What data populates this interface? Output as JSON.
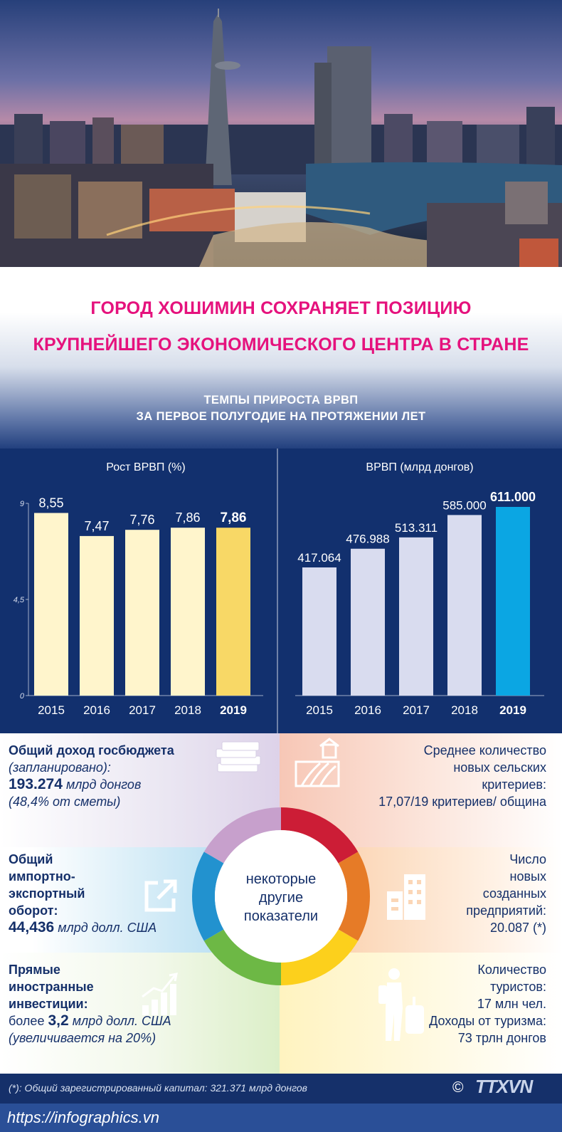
{
  "title": {
    "line1": "ГОРОД ХОШИМИН СОХРАНЯЕТ ПОЗИЦИЮ",
    "line2": "КРУПНЕЙШЕГО ЭКОНОМИЧЕСКОГО ЦЕНТРА В СТРАНЕ"
  },
  "subtitle": {
    "line1": "ТЕМПЫ ПРИРОСТА ВРВП",
    "line2": "ЗА ПЕРВОЕ ПОЛУГОДИЕ НА ПРОТЯЖЕНИИ ЛЕТ"
  },
  "chart_data": [
    {
      "type": "bar",
      "title": "Рост ВРВП (%)",
      "categories": [
        "2015",
        "2016",
        "2017",
        "2018",
        "2019"
      ],
      "values": [
        8.55,
        7.47,
        7.76,
        7.86,
        7.86
      ],
      "labels": [
        "8,55",
        "7,47",
        "7,76",
        "7,86",
        "7,86"
      ],
      "highlight_index": 4,
      "yticks": [
        "0",
        "4,5",
        "9"
      ],
      "ylim": [
        0,
        9
      ],
      "colors": {
        "bar": "#fff5cc",
        "highlight": "#f8d866"
      }
    },
    {
      "type": "bar",
      "title": "ВРВП (млрд донгов)",
      "categories": [
        "2015",
        "2016",
        "2017",
        "2018",
        "2019"
      ],
      "values": [
        417064,
        476988,
        513311,
        585000,
        611000
      ],
      "labels": [
        "417.064",
        "476.988",
        "513.311",
        "585.000",
        "611.000"
      ],
      "highlight_index": 4,
      "colors": {
        "bar": "#d9dcef",
        "highlight": "#0ba6e3"
      }
    }
  ],
  "indicators": {
    "budget": {
      "title": "Общий доход госбюджета",
      "note": "(запланировано):",
      "value": "193.274",
      "unit": "млрд донгов",
      "extra": "(48,4% от сметы)",
      "icon": "money-stack-icon"
    },
    "rural": {
      "line1": "Среднее количество",
      "line2": "новых сельских",
      "line3": "критериев:",
      "value": "17,07/19 критериев/ община",
      "icon": "farm-icon"
    },
    "trade": {
      "line1": "Общий",
      "line2": "импортно-",
      "line3": "экспортный",
      "line4": "оборот:",
      "value": "44,436",
      "unit": "млрд долл. США",
      "icon": "export-arrow-icon"
    },
    "enterprises": {
      "line1": "Число",
      "line2": "новых",
      "line3": "созданных",
      "line4": "предприятий:",
      "value": "20.087 (*)",
      "icon": "buildings-icon"
    },
    "fdi": {
      "line1": "Прямые",
      "line2": "иностранные",
      "line3": "инвестиции:",
      "prefix": "более",
      "value": "3,2",
      "unit": "млрд долл. США",
      "extra": "(увеличивается на 20%)",
      "icon": "growth-chart-icon"
    },
    "tourism": {
      "line1": "Количество",
      "line2": "туристов:",
      "line3": "17 млн чел.",
      "line4": "Доходы от туризма:",
      "line5": "73 трлн донгов",
      "icon": "tourist-icon"
    },
    "center": {
      "line1": "некоторые",
      "line2": "другие",
      "line3": "показатели"
    },
    "ring_colors": [
      "#c7a0cc",
      "#cc1d36",
      "#e67b27",
      "#fcd01c",
      "#6db845",
      "#2292cf"
    ]
  },
  "footer": {
    "footnote": "(*): Общий зарегистрированный капитал: 321.371 млрд донгов",
    "copyright": "©",
    "logo": "TTXVN",
    "url": "https://infographics.vn"
  }
}
